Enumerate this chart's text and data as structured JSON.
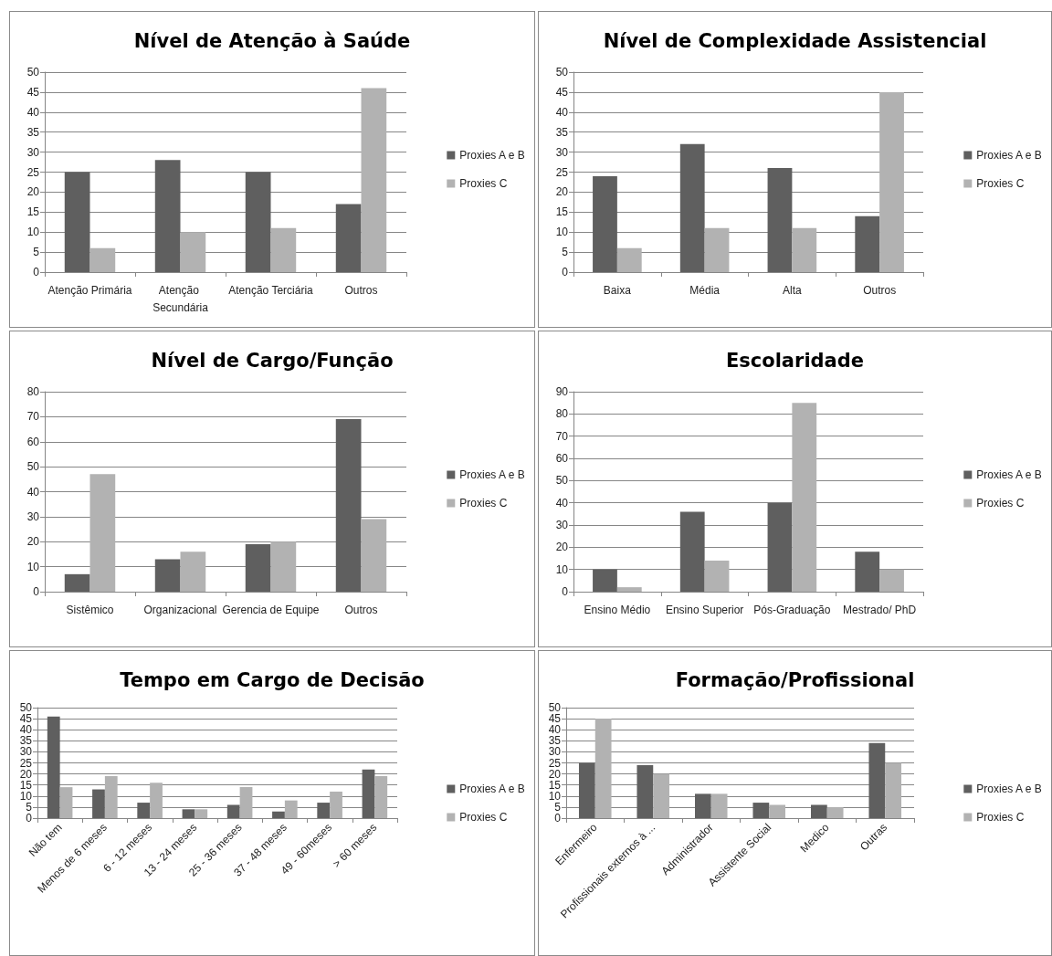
{
  "chart_data": [
    {
      "type": "bar",
      "title": "Nível de Atenção à Saúde",
      "categories": [
        "Atenção Primária",
        "Atenção Secundária",
        "Atenção Terciária",
        "Outros"
      ],
      "series": [
        {
          "name": "Proxies A e B",
          "color": "#5f5f5f",
          "values": [
            25,
            28,
            25,
            17
          ]
        },
        {
          "name": "Proxies C",
          "color": "#b2b2b2",
          "values": [
            6,
            10,
            11,
            46
          ]
        }
      ],
      "ylim": [
        0,
        50
      ],
      "yticks": [
        0,
        5,
        10,
        15,
        20,
        25,
        30,
        35,
        40,
        45,
        50
      ],
      "grid": "y",
      "legend": "right"
    },
    {
      "type": "bar",
      "title": "Nível de Complexidade Assistencial",
      "categories": [
        "Baixa",
        "Média",
        "Alta",
        "Outros"
      ],
      "series": [
        {
          "name": "Proxies A e B",
          "color": "#5f5f5f",
          "values": [
            24,
            32,
            26,
            14
          ]
        },
        {
          "name": "Proxies C",
          "color": "#b2b2b2",
          "values": [
            6,
            11,
            11,
            45
          ]
        }
      ],
      "ylim": [
        0,
        50
      ],
      "yticks": [
        0,
        5,
        10,
        15,
        20,
        25,
        30,
        35,
        40,
        45,
        50
      ],
      "grid": "y",
      "legend": "right"
    },
    {
      "type": "bar",
      "title": "Nível de Cargo/Função",
      "categories": [
        "Sistêmico",
        "Organizacional",
        "Gerencia de Equipe",
        "Outros"
      ],
      "series": [
        {
          "name": "Proxies A e B",
          "color": "#5f5f5f",
          "values": [
            7,
            13,
            19,
            69
          ]
        },
        {
          "name": "Proxies C",
          "color": "#b2b2b2",
          "values": [
            47,
            16,
            20,
            29
          ]
        }
      ],
      "ylim": [
        0,
        80
      ],
      "yticks": [
        0,
        10,
        20,
        30,
        40,
        50,
        60,
        70,
        80
      ],
      "grid": "y",
      "legend": "right"
    },
    {
      "type": "bar",
      "title": "Escolaridade",
      "categories": [
        "Ensino Médio",
        "Ensino Superior",
        "Pós-Graduação",
        "Mestrado/ PhD"
      ],
      "series": [
        {
          "name": "Proxies A e B",
          "color": "#5f5f5f",
          "values": [
            10,
            36,
            40,
            18
          ]
        },
        {
          "name": "Proxies C",
          "color": "#b2b2b2",
          "values": [
            2,
            14,
            85,
            10
          ]
        }
      ],
      "ylim": [
        0,
        90
      ],
      "yticks": [
        0,
        10,
        20,
        30,
        40,
        50,
        60,
        70,
        80,
        90
      ],
      "grid": "y",
      "legend": "right"
    },
    {
      "type": "bar",
      "title": "Tempo em Cargo de Decisão",
      "categories": [
        "Não tem",
        "Menos de 6 meses",
        "6 - 12 meses",
        "13 - 24 meses",
        "25 - 36 meses",
        "37 - 48 meses",
        "49 - 60meses",
        "> 60 meses"
      ],
      "series": [
        {
          "name": "Proxies A e B",
          "color": "#5f5f5f",
          "values": [
            46,
            13,
            7,
            4,
            6,
            3,
            7,
            22
          ]
        },
        {
          "name": "Proxies C",
          "color": "#b2b2b2",
          "values": [
            14,
            19,
            16,
            4,
            14,
            8,
            12,
            19
          ]
        }
      ],
      "ylim": [
        0,
        50
      ],
      "yticks": [
        0,
        5,
        10,
        15,
        20,
        25,
        30,
        35,
        40,
        45,
        50
      ],
      "grid": "y",
      "legend": "right"
    },
    {
      "type": "bar",
      "title": "Formação/Profissional",
      "categories": [
        "Enfermeiro",
        "Profissionais externos à ...",
        "Administrador",
        "Assistente Social",
        "Medico",
        "Outras"
      ],
      "series": [
        {
          "name": "Proxies A e B",
          "color": "#5f5f5f",
          "values": [
            25,
            24,
            11,
            7,
            6,
            34
          ]
        },
        {
          "name": "Proxies C",
          "color": "#b2b2b2",
          "values": [
            45,
            20,
            11,
            6,
            5,
            25
          ]
        }
      ],
      "ylim": [
        0,
        50
      ],
      "yticks": [
        0,
        5,
        10,
        15,
        20,
        25,
        30,
        35,
        40,
        45,
        50
      ],
      "grid": "y",
      "legend": "right"
    }
  ]
}
